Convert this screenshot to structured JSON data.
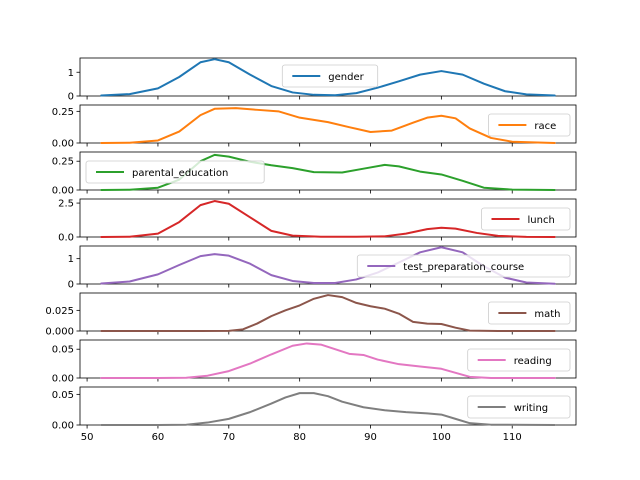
{
  "chart_data": {
    "type": "line",
    "xlim": [
      49,
      119
    ],
    "x_ticks": [
      50,
      60,
      70,
      80,
      90,
      100,
      110
    ],
    "x_tick_labels": [
      "50",
      "60",
      "70",
      "80",
      "90",
      "100",
      "110"
    ],
    "grid": false,
    "panels": [
      {
        "name": "gender",
        "color": "#1f77b4",
        "ylim": [
          0,
          1.6
        ],
        "y_ticks": [
          0,
          1
        ],
        "y_tick_labels": [
          "0",
          "1"
        ],
        "legend_position": "upper center",
        "points": [
          [
            52,
            0.02
          ],
          [
            56,
            0.08
          ],
          [
            60,
            0.32
          ],
          [
            63,
            0.8
          ],
          [
            66,
            1.42
          ],
          [
            68,
            1.55
          ],
          [
            70,
            1.42
          ],
          [
            73,
            0.9
          ],
          [
            76,
            0.42
          ],
          [
            79,
            0.15
          ],
          [
            82,
            0.05
          ],
          [
            85,
            0.03
          ],
          [
            88,
            0.12
          ],
          [
            91,
            0.35
          ],
          [
            94,
            0.62
          ],
          [
            97,
            0.9
          ],
          [
            100,
            1.05
          ],
          [
            103,
            0.9
          ],
          [
            106,
            0.52
          ],
          [
            109,
            0.2
          ],
          [
            112,
            0.07
          ],
          [
            116,
            0.02
          ]
        ]
      },
      {
        "name": "race",
        "color": "#ff7f0e",
        "ylim": [
          0,
          0.3
        ],
        "y_ticks": [
          0,
          0.25
        ],
        "y_tick_labels": [
          "0.00",
          "0.25"
        ],
        "legend_position": "right",
        "points": [
          [
            52,
            0
          ],
          [
            56,
            0.002
          ],
          [
            60,
            0.02
          ],
          [
            63,
            0.09
          ],
          [
            66,
            0.22
          ],
          [
            68,
            0.27
          ],
          [
            71,
            0.275
          ],
          [
            74,
            0.262
          ],
          [
            77,
            0.25
          ],
          [
            80,
            0.2
          ],
          [
            84,
            0.165
          ],
          [
            87,
            0.125
          ],
          [
            90,
            0.087
          ],
          [
            93,
            0.098
          ],
          [
            96,
            0.16
          ],
          [
            98,
            0.2
          ],
          [
            100,
            0.215
          ],
          [
            102,
            0.195
          ],
          [
            104,
            0.115
          ],
          [
            107,
            0.04
          ],
          [
            110,
            0.01
          ],
          [
            116,
            0
          ]
        ]
      },
      {
        "name": "parental_education",
        "color": "#2ca02c",
        "ylim": [
          0,
          0.33
        ],
        "y_ticks": [
          0,
          0.25
        ],
        "y_tick_labels": [
          "0.00",
          "0.25"
        ],
        "legend_position": "left",
        "points": [
          [
            52,
            0
          ],
          [
            56,
            0.002
          ],
          [
            60,
            0.02
          ],
          [
            63,
            0.09
          ],
          [
            66,
            0.25
          ],
          [
            68,
            0.305
          ],
          [
            70,
            0.29
          ],
          [
            73,
            0.245
          ],
          [
            76,
            0.215
          ],
          [
            79,
            0.19
          ],
          [
            82,
            0.155
          ],
          [
            86,
            0.152
          ],
          [
            89,
            0.185
          ],
          [
            92,
            0.218
          ],
          [
            94,
            0.205
          ],
          [
            97,
            0.16
          ],
          [
            100,
            0.135
          ],
          [
            103,
            0.08
          ],
          [
            106,
            0.02
          ],
          [
            110,
            0.003
          ],
          [
            116,
            0
          ]
        ]
      },
      {
        "name": "lunch",
        "color": "#d62728",
        "ylim": [
          0,
          2.8
        ],
        "y_ticks": [
          0,
          2.5
        ],
        "y_tick_labels": [
          "0.0",
          "2.5"
        ],
        "legend_position": "right",
        "points": [
          [
            52,
            0
          ],
          [
            56,
            0.02
          ],
          [
            60,
            0.25
          ],
          [
            63,
            1.1
          ],
          [
            66,
            2.35
          ],
          [
            68,
            2.65
          ],
          [
            70,
            2.45
          ],
          [
            73,
            1.45
          ],
          [
            76,
            0.45
          ],
          [
            79,
            0.1
          ],
          [
            83,
            0.02
          ],
          [
            88,
            0.02
          ],
          [
            92,
            0.05
          ],
          [
            95,
            0.25
          ],
          [
            98,
            0.58
          ],
          [
            100,
            0.68
          ],
          [
            102,
            0.62
          ],
          [
            105,
            0.3
          ],
          [
            108,
            0.08
          ],
          [
            112,
            0.01
          ],
          [
            116,
            0
          ]
        ]
      },
      {
        "name": "test_preparation_course",
        "color": "#9467bd",
        "ylim": [
          0,
          1.5
        ],
        "y_ticks": [
          0,
          1
        ],
        "y_tick_labels": [
          "0",
          "1"
        ],
        "legend_position": "right",
        "points": [
          [
            52,
            0.02
          ],
          [
            56,
            0.1
          ],
          [
            60,
            0.38
          ],
          [
            63,
            0.75
          ],
          [
            66,
            1.1
          ],
          [
            68,
            1.18
          ],
          [
            70,
            1.12
          ],
          [
            73,
            0.8
          ],
          [
            76,
            0.35
          ],
          [
            79,
            0.12
          ],
          [
            82,
            0.04
          ],
          [
            85,
            0.04
          ],
          [
            88,
            0.18
          ],
          [
            91,
            0.45
          ],
          [
            94,
            0.85
          ],
          [
            97,
            1.25
          ],
          [
            100,
            1.45
          ],
          [
            103,
            1.25
          ],
          [
            106,
            0.7
          ],
          [
            109,
            0.25
          ],
          [
            112,
            0.06
          ],
          [
            116,
            0.01
          ]
        ]
      },
      {
        "name": "math",
        "color": "#8c564b",
        "ylim": [
          0,
          0.046
        ],
        "y_ticks": [
          0,
          0.025
        ],
        "y_tick_labels": [
          "0.000",
          "0.025"
        ],
        "legend_position": "right",
        "points": [
          [
            52,
            0
          ],
          [
            60,
            0
          ],
          [
            66,
            0
          ],
          [
            70,
            0.0002
          ],
          [
            72,
            0.002
          ],
          [
            74,
            0.009
          ],
          [
            76,
            0.018
          ],
          [
            78,
            0.025
          ],
          [
            80,
            0.031
          ],
          [
            82,
            0.039
          ],
          [
            84,
            0.0435
          ],
          [
            86,
            0.041
          ],
          [
            88,
            0.034
          ],
          [
            90,
            0.03
          ],
          [
            92,
            0.027
          ],
          [
            94,
            0.021
          ],
          [
            96,
            0.011
          ],
          [
            98,
            0.009
          ],
          [
            100,
            0.0085
          ],
          [
            102,
            0.004
          ],
          [
            104,
            0.0005
          ],
          [
            108,
            0
          ],
          [
            116,
            0
          ]
        ]
      },
      {
        "name": "reading",
        "color": "#e377c2",
        "ylim": [
          0,
          0.066
        ],
        "y_ticks": [
          0,
          0.05
        ],
        "y_tick_labels": [
          "0.00",
          "0.05"
        ],
        "legend_position": "right",
        "points": [
          [
            52,
            0
          ],
          [
            60,
            0
          ],
          [
            64,
            0.0005
          ],
          [
            67,
            0.004
          ],
          [
            70,
            0.012
          ],
          [
            73,
            0.025
          ],
          [
            76,
            0.041
          ],
          [
            79,
            0.056
          ],
          [
            81,
            0.06
          ],
          [
            83,
            0.058
          ],
          [
            85,
            0.05
          ],
          [
            87,
            0.042
          ],
          [
            89,
            0.04
          ],
          [
            91,
            0.032
          ],
          [
            94,
            0.024
          ],
          [
            97,
            0.02
          ],
          [
            100,
            0.016
          ],
          [
            102,
            0.009
          ],
          [
            104,
            0.002
          ],
          [
            107,
            0
          ],
          [
            116,
            0
          ]
        ]
      },
      {
        "name": "writing",
        "color": "#7f7f7f",
        "ylim": [
          0,
          0.062
        ],
        "y_ticks": [
          0,
          0.05
        ],
        "y_tick_labels": [
          "0.00",
          "0.05"
        ],
        "legend_position": "right",
        "points": [
          [
            52,
            0
          ],
          [
            60,
            0
          ],
          [
            64,
            0.0005
          ],
          [
            67,
            0.004
          ],
          [
            70,
            0.01
          ],
          [
            73,
            0.021
          ],
          [
            76,
            0.035
          ],
          [
            78,
            0.045
          ],
          [
            80,
            0.052
          ],
          [
            82,
            0.052
          ],
          [
            84,
            0.047
          ],
          [
            86,
            0.038
          ],
          [
            89,
            0.029
          ],
          [
            92,
            0.024
          ],
          [
            95,
            0.021
          ],
          [
            98,
            0.019
          ],
          [
            100,
            0.017
          ],
          [
            102,
            0.01
          ],
          [
            104,
            0.003
          ],
          [
            107,
            0.0005
          ],
          [
            116,
            0
          ]
        ]
      }
    ]
  }
}
